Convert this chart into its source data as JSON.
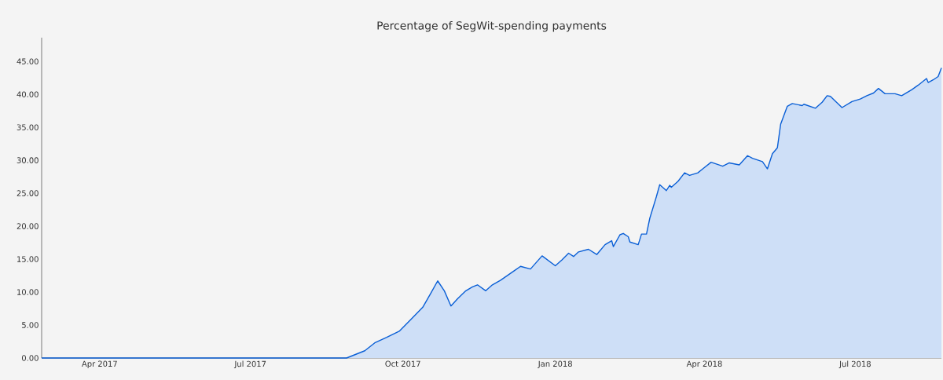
{
  "chart_data": {
    "type": "area",
    "title": "Percentage of SegWit-spending payments",
    "color": "#0a5fd6",
    "xlim": [
      "2017-02-25",
      "2018-08-22"
    ],
    "xticks": [
      {
        "value": "2017-04-01",
        "label": "Apr 2017"
      },
      {
        "value": "2017-07-01",
        "label": "Jul 2017"
      },
      {
        "value": "2017-10-01",
        "label": "Oct 2017"
      },
      {
        "value": "2018-01-01",
        "label": "Jan 2018"
      },
      {
        "value": "2018-04-01",
        "label": "Apr 2018"
      },
      {
        "value": "2018-07-01",
        "label": "Jul 2018"
      }
    ],
    "ylim": [
      0,
      48.6
    ],
    "yticks": [
      {
        "value": 0,
        "label": "0.00"
      },
      {
        "value": 5,
        "label": "5.00"
      },
      {
        "value": 10,
        "label": "10.00"
      },
      {
        "value": 15,
        "label": "15.00"
      },
      {
        "value": 20,
        "label": "20.00"
      },
      {
        "value": 25,
        "label": "25.00"
      },
      {
        "value": 30,
        "label": "30.00"
      },
      {
        "value": 35,
        "label": "35.00"
      },
      {
        "value": 40,
        "label": "40.00"
      },
      {
        "value": 45,
        "label": "45.00"
      }
    ],
    "x": [
      "2017-02-25",
      "2017-08-28",
      "2017-09-08",
      "2017-09-14",
      "2017-09-21",
      "2017-09-29",
      "2017-10-06",
      "2017-10-13",
      "2017-10-18",
      "2017-10-22",
      "2017-10-26",
      "2017-10-30",
      "2017-11-03",
      "2017-11-08",
      "2017-11-12",
      "2017-11-15",
      "2017-11-20",
      "2017-11-24",
      "2017-11-29",
      "2017-12-07",
      "2017-12-11",
      "2017-12-17",
      "2017-12-24",
      "2018-01-01",
      "2018-01-05",
      "2018-01-09",
      "2018-01-12",
      "2018-01-15",
      "2018-01-21",
      "2018-01-26",
      "2018-01-31",
      "2018-02-04",
      "2018-02-05",
      "2018-02-09",
      "2018-02-11",
      "2018-02-14",
      "2018-02-15",
      "2018-02-20",
      "2018-02-22",
      "2018-02-25",
      "2018-02-27",
      "2018-03-03",
      "2018-03-05",
      "2018-03-09",
      "2018-03-11",
      "2018-03-12",
      "2018-03-16",
      "2018-03-20",
      "2018-03-23",
      "2018-03-28",
      "2018-03-31",
      "2018-04-05",
      "2018-04-12",
      "2018-04-16",
      "2018-04-22",
      "2018-04-27",
      "2018-04-30",
      "2018-05-06",
      "2018-05-09",
      "2018-05-12",
      "2018-05-15",
      "2018-05-17",
      "2018-05-21",
      "2018-05-24",
      "2018-05-30",
      "2018-05-31",
      "2018-06-07",
      "2018-06-11",
      "2018-06-14",
      "2018-06-16",
      "2018-06-23",
      "2018-06-29",
      "2018-07-04",
      "2018-07-08",
      "2018-07-12",
      "2018-07-15",
      "2018-07-19",
      "2018-07-25",
      "2018-07-29",
      "2018-08-04",
      "2018-08-08",
      "2018-08-13",
      "2018-08-14",
      "2018-08-17",
      "2018-08-20",
      "2018-08-22"
    ],
    "values": [
      0,
      0,
      1.1,
      2.3,
      3.1,
      4.1,
      5.9,
      7.7,
      9.9,
      11.7,
      10.2,
      7.9,
      9.0,
      10.2,
      10.8,
      11.1,
      10.2,
      11.1,
      11.8,
      13.2,
      13.9,
      13.5,
      15.5,
      14.0,
      14.9,
      15.9,
      15.4,
      16.1,
      16.5,
      15.7,
      17.2,
      17.8,
      16.9,
      18.7,
      18.9,
      18.4,
      17.6,
      17.2,
      18.8,
      18.8,
      21.2,
      24.5,
      26.3,
      25.4,
      26.2,
      25.9,
      26.8,
      28.1,
      27.7,
      28.1,
      28.7,
      29.7,
      29.1,
      29.6,
      29.3,
      30.7,
      30.3,
      29.8,
      28.7,
      31.0,
      31.9,
      35.5,
      38.2,
      38.6,
      38.3,
      38.5,
      37.9,
      38.8,
      39.8,
      39.7,
      38.0,
      38.9,
      39.3,
      39.8,
      40.2,
      40.9,
      40.1,
      40.1,
      39.8,
      40.7,
      41.4,
      42.4,
      41.8,
      42.2,
      42.7,
      44.0
    ]
  }
}
